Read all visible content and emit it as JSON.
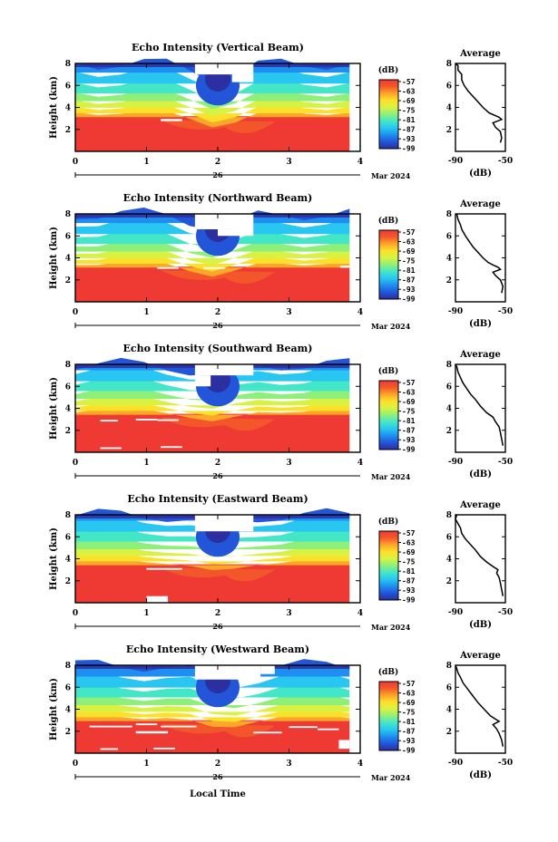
{
  "figure": {
    "xlabel_bottom": "Local Time",
    "date_day": "26",
    "date_label": "Mar 2024",
    "colorbar_unit": "(dB)",
    "colorbar_ticks": [
      -57,
      -63,
      -69,
      -75,
      -81,
      -87,
      -93,
      -99
    ],
    "colormap": [
      "#2b2fa0",
      "#2255d8",
      "#1e8ef0",
      "#28c6f0",
      "#44e6c8",
      "#8ef07a",
      "#d8f244",
      "#fce12a",
      "#fca62a",
      "#f45a2a",
      "#ef3a34"
    ],
    "panel_ylabel": "Height (km)",
    "average_title": "Average",
    "average_xlabel": "(dB)"
  },
  "chart_data": [
    {
      "type": "heatmap",
      "title": "Echo Intensity (Vertical Beam)",
      "ylabel": "Height (km)",
      "xlim": [
        0,
        4
      ],
      "ylim": [
        0,
        8
      ],
      "xticks": [
        0,
        1,
        2,
        3,
        4
      ],
      "yticks": [
        2,
        4,
        6,
        8
      ],
      "data_xrange": [
        0,
        3.85
      ],
      "z_range": [
        -99,
        -57
      ],
      "boundary_height_km": 3.2,
      "missing_blocks": [
        [
          1.68,
          2.5,
          7.0,
          8.0
        ],
        [
          2.2,
          2.5,
          6.3,
          7.0
        ],
        [
          1.2,
          1.5,
          2.75,
          2.95
        ]
      ],
      "average": {
        "title": "Average",
        "xlabel": "(dB)",
        "xlim": [
          -90,
          -50
        ],
        "xticks": [
          -90,
          -50
        ],
        "ylim": [
          0,
          8
        ],
        "yticks": [
          2,
          4,
          6,
          8
        ],
        "profile": [
          [
            -54,
            0.8
          ],
          [
            -53,
            1.2
          ],
          [
            -54,
            1.8
          ],
          [
            -58,
            2.2
          ],
          [
            -60,
            2.6
          ],
          [
            -53,
            2.9
          ],
          [
            -55,
            3.1
          ],
          [
            -58,
            3.25
          ],
          [
            -63,
            3.5
          ],
          [
            -68,
            4.0
          ],
          [
            -72,
            4.5
          ],
          [
            -76,
            5.0
          ],
          [
            -80,
            5.5
          ],
          [
            -83,
            6.0
          ],
          [
            -85,
            6.5
          ],
          [
            -85,
            7.0
          ],
          [
            -88,
            7.4
          ],
          [
            -88,
            7.8
          ],
          [
            -90,
            8.0
          ]
        ]
      }
    },
    {
      "type": "heatmap",
      "title": "Echo Intensity (Northward Beam)",
      "ylabel": "Height (km)",
      "xlim": [
        0,
        4
      ],
      "ylim": [
        0,
        8
      ],
      "xticks": [
        0,
        1,
        2,
        3,
        4
      ],
      "yticks": [
        2,
        4,
        6,
        8
      ],
      "data_xrange": [
        0,
        3.85
      ],
      "z_range": [
        -99,
        -57
      ],
      "boundary_height_km": 3.2,
      "missing_blocks": [
        [
          1.68,
          2.5,
          6.6,
          8.0
        ],
        [
          2.0,
          2.5,
          6.0,
          6.6
        ],
        [
          1.15,
          1.45,
          3.0,
          3.15
        ],
        [
          1.8,
          2.1,
          3.0,
          3.15
        ],
        [
          3.72,
          3.85,
          3.1,
          3.3
        ]
      ],
      "average": {
        "title": "Average",
        "xlabel": "(dB)",
        "xlim": [
          -90,
          -50
        ],
        "xticks": [
          -90,
          -50
        ],
        "ylim": [
          0,
          8
        ],
        "yticks": [
          2,
          4,
          6,
          8
        ],
        "profile": [
          [
            -53,
            0.8
          ],
          [
            -52,
            1.4
          ],
          [
            -54,
            2.0
          ],
          [
            -58,
            2.4
          ],
          [
            -60,
            2.7
          ],
          [
            -54,
            2.95
          ],
          [
            -56,
            3.15
          ],
          [
            -59,
            3.3
          ],
          [
            -64,
            3.6
          ],
          [
            -68,
            4.0
          ],
          [
            -72,
            4.5
          ],
          [
            -76,
            5.0
          ],
          [
            -79,
            5.5
          ],
          [
            -82,
            6.0
          ],
          [
            -85,
            6.6
          ],
          [
            -86,
            7.0
          ],
          [
            -88,
            7.5
          ],
          [
            -89,
            8.0
          ]
        ]
      }
    },
    {
      "type": "heatmap",
      "title": "Echo Intensity (Southward Beam)",
      "ylabel": "Height (km)",
      "xlim": [
        0,
        4
      ],
      "ylim": [
        0,
        8
      ],
      "xticks": [
        0,
        1,
        2,
        3,
        4
      ],
      "yticks": [
        2,
        4,
        6,
        8
      ],
      "data_xrange": [
        0,
        3.85
      ],
      "z_range": [
        -99,
        -57
      ],
      "boundary_height_km": 3.5,
      "missing_blocks": [
        [
          1.68,
          2.5,
          7.0,
          8.0
        ],
        [
          1.68,
          1.9,
          6.0,
          7.0
        ],
        [
          0.35,
          0.6,
          2.8,
          2.95
        ],
        [
          0.85,
          1.15,
          2.9,
          3.05
        ],
        [
          1.15,
          1.45,
          2.85,
          3.0
        ],
        [
          0.35,
          0.65,
          0.3,
          0.45
        ],
        [
          1.2,
          1.5,
          0.4,
          0.55
        ]
      ],
      "average": {
        "title": "Average",
        "xlabel": "(dB)",
        "xlim": [
          -90,
          -50
        ],
        "xticks": [
          -90,
          -50
        ],
        "ylim": [
          0,
          8
        ],
        "yticks": [
          2,
          4,
          6,
          8
        ],
        "profile": [
          [
            -52,
            0.6
          ],
          [
            -53,
            1.2
          ],
          [
            -54,
            1.8
          ],
          [
            -55,
            2.3
          ],
          [
            -58,
            2.8
          ],
          [
            -60,
            3.2
          ],
          [
            -65,
            3.6
          ],
          [
            -70,
            4.2
          ],
          [
            -74,
            4.8
          ],
          [
            -78,
            5.3
          ],
          [
            -81,
            5.8
          ],
          [
            -84,
            6.3
          ],
          [
            -86,
            6.8
          ],
          [
            -88,
            7.3
          ],
          [
            -89,
            7.8
          ],
          [
            -90,
            8.0
          ]
        ]
      }
    },
    {
      "type": "heatmap",
      "title": "Echo Intensity (Eastward Beam)",
      "ylabel": "Height (km)",
      "xlim": [
        0,
        4
      ],
      "ylim": [
        0,
        8
      ],
      "xticks": [
        0,
        1,
        2,
        3,
        4
      ],
      "yticks": [
        2,
        4,
        6,
        8
      ],
      "data_xrange": [
        0,
        3.85
      ],
      "z_range": [
        -99,
        -57
      ],
      "boundary_height_km": 3.5,
      "missing_blocks": [
        [
          1.68,
          2.5,
          6.5,
          8.0
        ],
        [
          1.0,
          1.3,
          0.0,
          0.6
        ],
        [
          1.0,
          1.5,
          3.0,
          3.15
        ]
      ],
      "average": {
        "title": "Average",
        "xlabel": "(dB)",
        "xlim": [
          -90,
          -50
        ],
        "xticks": [
          -90,
          -50
        ],
        "ylim": [
          0,
          8
        ],
        "yticks": [
          2,
          4,
          6,
          8
        ],
        "profile": [
          [
            -52,
            0.6
          ],
          [
            -53,
            1.2
          ],
          [
            -54,
            1.8
          ],
          [
            -55,
            2.3
          ],
          [
            -57,
            2.7
          ],
          [
            -56,
            3.0
          ],
          [
            -60,
            3.3
          ],
          [
            -65,
            3.7
          ],
          [
            -70,
            4.2
          ],
          [
            -74,
            4.8
          ],
          [
            -78,
            5.3
          ],
          [
            -82,
            5.8
          ],
          [
            -85,
            6.3
          ],
          [
            -86,
            6.8
          ],
          [
            -88,
            7.2
          ],
          [
            -90,
            7.6
          ],
          [
            -89,
            8.0
          ]
        ]
      }
    },
    {
      "type": "heatmap",
      "title": "Echo Intensity (Westward Beam)",
      "ylabel": "Height (km)",
      "xlim": [
        0,
        4
      ],
      "ylim": [
        0,
        8
      ],
      "xticks": [
        0,
        1,
        2,
        3,
        4
      ],
      "yticks": [
        2,
        4,
        6,
        8
      ],
      "data_xrange": [
        0,
        3.85
      ],
      "z_range": [
        -99,
        -57
      ],
      "boundary_height_km": 3.0,
      "missing_blocks": [
        [
          1.68,
          2.6,
          6.7,
          8.0
        ],
        [
          2.6,
          2.8,
          7.2,
          8.0
        ],
        [
          0.2,
          0.8,
          2.35,
          2.5
        ],
        [
          0.85,
          1.15,
          2.55,
          2.7
        ],
        [
          0.85,
          1.3,
          1.8,
          2.0
        ],
        [
          1.2,
          1.7,
          2.35,
          2.5
        ],
        [
          2.5,
          2.9,
          1.8,
          1.95
        ],
        [
          3.0,
          3.4,
          2.3,
          2.45
        ],
        [
          3.4,
          3.7,
          2.1,
          2.25
        ],
        [
          0.35,
          0.6,
          0.3,
          0.45
        ],
        [
          1.1,
          1.4,
          0.35,
          0.5
        ],
        [
          3.7,
          3.85,
          0.4,
          1.2
        ]
      ],
      "average": {
        "title": "Average",
        "xlabel": "(dB)",
        "xlim": [
          -90,
          -50
        ],
        "xticks": [
          -90,
          -50
        ],
        "ylim": [
          0,
          8
        ],
        "yticks": [
          2,
          4,
          6,
          8
        ],
        "profile": [
          [
            -52,
            0.6
          ],
          [
            -53,
            1.2
          ],
          [
            -55,
            1.8
          ],
          [
            -57,
            2.2
          ],
          [
            -60,
            2.6
          ],
          [
            -55,
            2.9
          ],
          [
            -58,
            3.1
          ],
          [
            -62,
            3.4
          ],
          [
            -67,
            4.0
          ],
          [
            -72,
            4.6
          ],
          [
            -76,
            5.2
          ],
          [
            -80,
            5.8
          ],
          [
            -84,
            6.4
          ],
          [
            -86,
            6.9
          ],
          [
            -88,
            7.3
          ],
          [
            -89,
            7.7
          ],
          [
            -90,
            8.0
          ]
        ]
      }
    }
  ]
}
